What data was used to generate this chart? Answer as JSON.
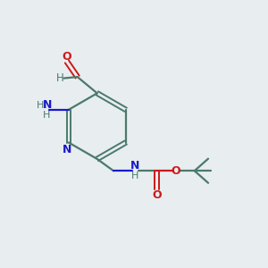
{
  "background_color": "#e8edf0",
  "bond_color": "#4a7a6a",
  "n_color": "#1a1acc",
  "o_color": "#cc1a1a",
  "figsize": [
    3.0,
    3.0
  ],
  "dpi": 100,
  "xlim": [
    0,
    10
  ],
  "ylim": [
    0,
    10
  ]
}
